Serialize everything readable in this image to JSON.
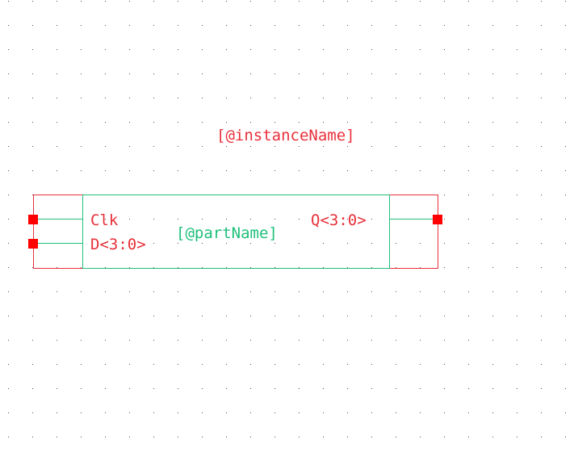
{
  "colors": {
    "background": "#ffffff",
    "grid_dot": "#4a4a4a",
    "symbol_body": "#1fbf7a",
    "pin_box": "#e8303a",
    "pin_marker": "#ff0000",
    "pin_label": "#e8303a",
    "instance_label": "#e8303a",
    "part_label": "#1fbf7a"
  },
  "schematic": {
    "instance_name_label": "[@instanceName]",
    "part_name_label": "[@partName]",
    "pins": {
      "clk": {
        "label": "Clk",
        "direction": "input"
      },
      "d": {
        "label": "D<3:0>",
        "direction": "input"
      },
      "q": {
        "label": "Q<3:0>",
        "direction": "output"
      }
    }
  }
}
